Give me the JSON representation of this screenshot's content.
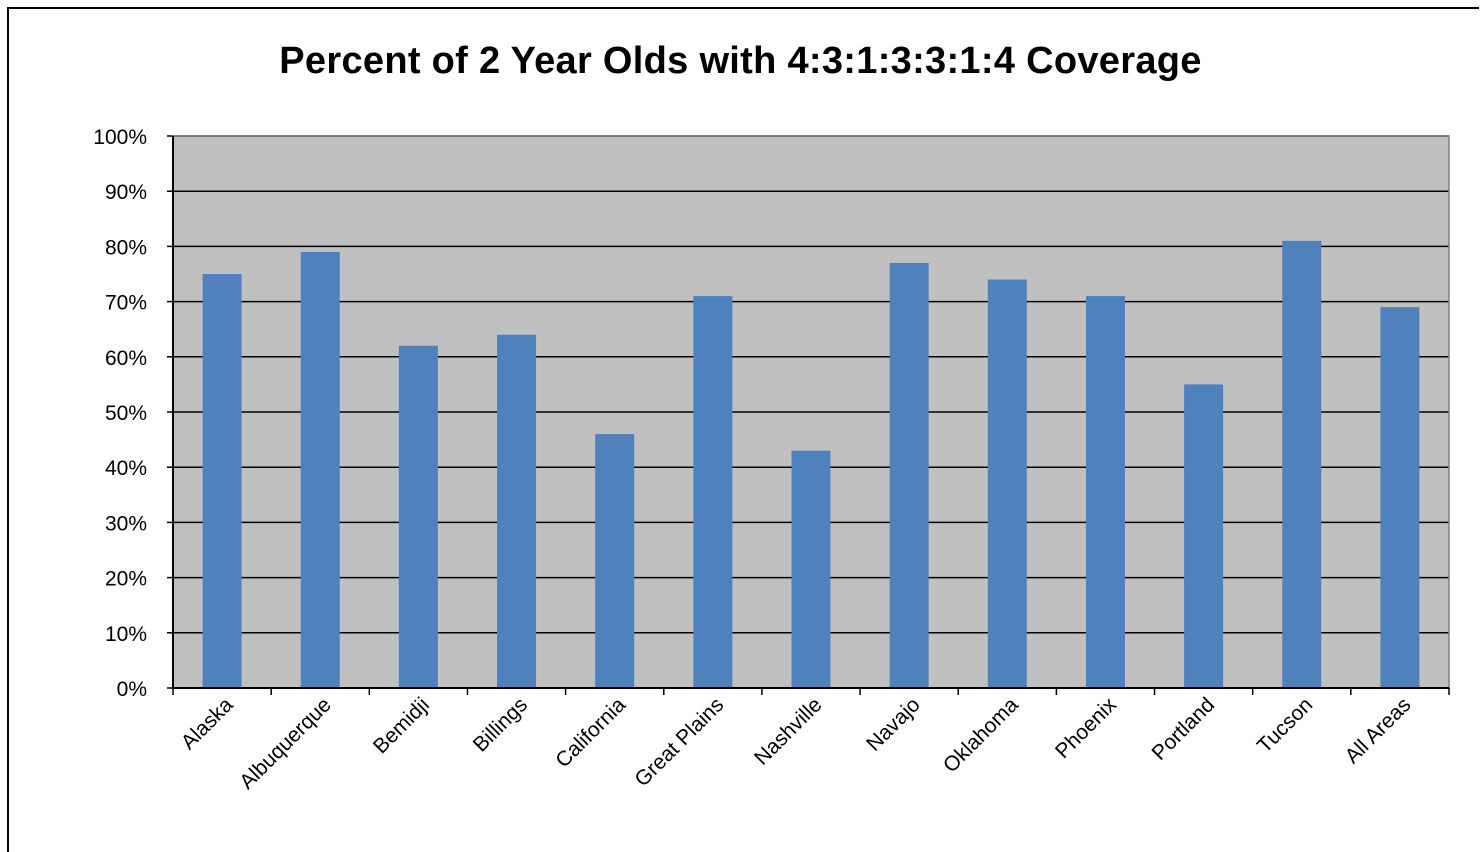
{
  "chart_data": {
    "type": "bar",
    "title": "Percent of 2 Year Olds with 4:3:1:3:3:1:4 Coverage",
    "xlabel": "",
    "ylabel": "",
    "categories": [
      "Alaska",
      "Albuquerque",
      "Bemidji",
      "Billings",
      "California",
      "Great Plains",
      "Nashville",
      "Navajo",
      "Oklahoma",
      "Phoenix",
      "Portland",
      "Tucson",
      "All Areas"
    ],
    "values": [
      75,
      79,
      62,
      64,
      46,
      71,
      43,
      77,
      74,
      71,
      55,
      81,
      69
    ],
    "ylim": [
      0,
      100
    ],
    "yticks": [
      "0%",
      "10%",
      "20%",
      "30%",
      "40%",
      "50%",
      "60%",
      "70%",
      "80%",
      "90%",
      "100%"
    ],
    "grid": true,
    "legend": "none",
    "colors": {
      "bar": "#4F81BD",
      "plot_background": "#C0C0C0",
      "gridline": "#000000"
    }
  }
}
